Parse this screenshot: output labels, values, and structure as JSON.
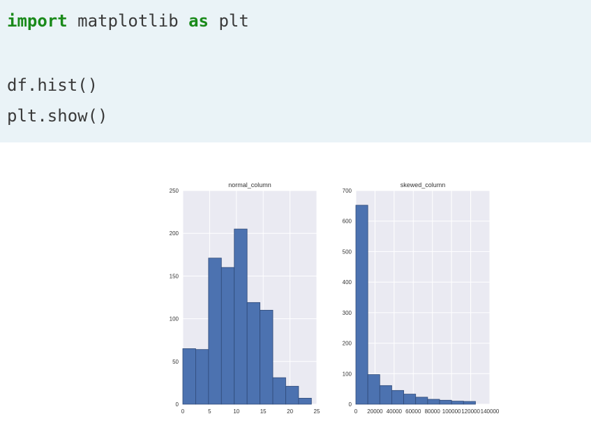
{
  "code": {
    "line1": {
      "kw1": "import",
      "mid": " matplotlib ",
      "kw2": "as",
      "tail": " plt"
    },
    "line2": "df.hist()",
    "line3": "plt.show()"
  },
  "colors": {
    "code_bg": "#eaf3f7",
    "keyword": "#1a8a1a",
    "bar_fill": "#4c72b0",
    "bar_edge": "#2f4a78",
    "plot_bg": "#eaeaf2",
    "grid": "#ffffff"
  },
  "chart_data": [
    {
      "type": "bar",
      "title": "normal_column",
      "xlabel": "",
      "ylabel": "",
      "bin_edges": [
        0,
        2.4,
        4.8,
        7.2,
        9.6,
        12.0,
        14.4,
        16.8,
        19.2,
        21.6,
        24.0
      ],
      "values": [
        65,
        64,
        171,
        160,
        205,
        119,
        110,
        31,
        21,
        7
      ],
      "xlim": [
        0,
        25
      ],
      "ylim": [
        0,
        250
      ],
      "xticks": [
        0,
        5,
        10,
        15,
        20,
        25
      ],
      "xtick_labels": [
        "0",
        "5",
        "10",
        "15",
        "20",
        "25"
      ],
      "yticks": [
        0,
        50,
        100,
        150,
        200,
        250
      ],
      "ytick_labels": [
        "0",
        "50",
        "100",
        "150",
        "200",
        "250"
      ],
      "grid": true
    },
    {
      "type": "bar",
      "title": "skewed_column",
      "xlabel": "",
      "ylabel": "",
      "bin_edges": [
        0,
        12500,
        25000,
        37500,
        50000,
        62500,
        75000,
        87500,
        100000,
        112500,
        125000
      ],
      "values": [
        652,
        97,
        61,
        45,
        33,
        23,
        16,
        13,
        10,
        9
      ],
      "xlim": [
        0,
        140000
      ],
      "ylim": [
        0,
        700
      ],
      "xticks": [
        0,
        20000,
        40000,
        60000,
        80000,
        100000,
        120000,
        140000
      ],
      "xtick_labels": [
        "0",
        "20000",
        "40000",
        "60000",
        "80000",
        "100000",
        "120000",
        "140000"
      ],
      "yticks": [
        0,
        100,
        200,
        300,
        400,
        500,
        600,
        700
      ],
      "ytick_labels": [
        "0",
        "100",
        "200",
        "300",
        "400",
        "500",
        "600",
        "700"
      ],
      "grid": true
    }
  ]
}
